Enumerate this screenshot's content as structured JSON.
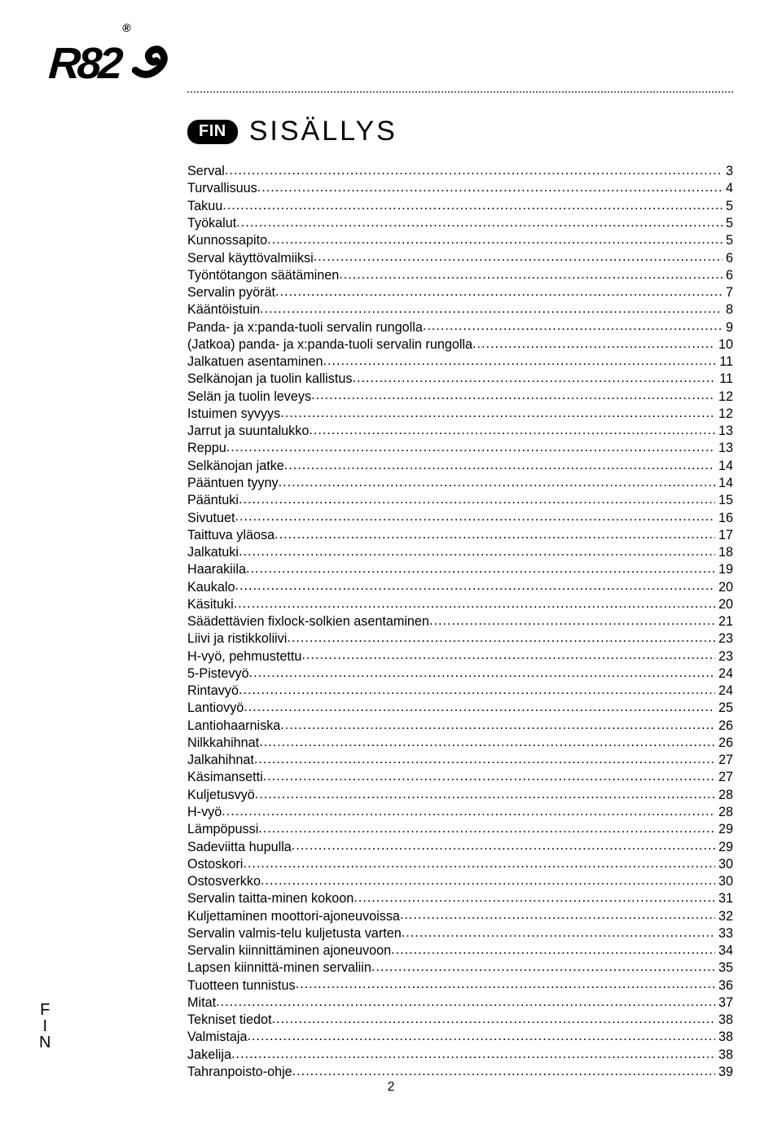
{
  "logo": {
    "text": "R82",
    "registered": "®"
  },
  "lang_badge": "FIN",
  "title": "SISÄLLYS",
  "side_tab_chars": [
    "F",
    "I",
    "N"
  ],
  "page_number": "2",
  "toc": [
    {
      "label": "Serval",
      "page": "3"
    },
    {
      "label": "Turvallisuus",
      "page": "4"
    },
    {
      "label": "Takuu",
      "page": "5"
    },
    {
      "label": "Työkalut",
      "page": "5"
    },
    {
      "label": "Kunnossapito",
      "page": "5"
    },
    {
      "label": "Serval käyttövalmiiksi",
      "page": "6"
    },
    {
      "label": "Työntötangon säätäminen",
      "page": "6"
    },
    {
      "label": "Servalin pyörät",
      "page": "7"
    },
    {
      "label": "Kääntöistuin",
      "page": "8"
    },
    {
      "label": "Panda- ja x:panda-tuoli servalin rungolla",
      "page": "9"
    },
    {
      "label": "(Jatkoa) panda- ja x:panda-tuoli servalin rungolla",
      "page": "10"
    },
    {
      "label": "Jalkatuen asentaminen",
      "page": "11"
    },
    {
      "label": "Selkänojan ja tuolin kallistus",
      "page": "11"
    },
    {
      "label": "Selän ja tuolin leveys",
      "page": "12"
    },
    {
      "label": "Istuimen syvyys",
      "page": "12"
    },
    {
      "label": "Jarrut ja suuntalukko",
      "page": "13"
    },
    {
      "label": "Reppu",
      "page": "13"
    },
    {
      "label": "Selkänojan jatke",
      "page": "14"
    },
    {
      "label": "Pääntuen tyyny",
      "page": "14"
    },
    {
      "label": "Pääntuki",
      "page": "15"
    },
    {
      "label": "Sivutuet",
      "page": "16"
    },
    {
      "label": "Taittuva yläosa",
      "page": "17"
    },
    {
      "label": "Jalkatuki",
      "page": "18"
    },
    {
      "label": "Haarakiila",
      "page": "19"
    },
    {
      "label": "Kaukalo",
      "page": "20"
    },
    {
      "label": "Käsituki",
      "page": "20"
    },
    {
      "label": "Säädettävien fixlock-solkien asentaminen",
      "page": "21"
    },
    {
      "label": "Liivi ja ristikkoliivi",
      "page": "23"
    },
    {
      "label": "H-vyö, pehmustettu",
      "page": "23"
    },
    {
      "label": "5-Pistevyö",
      "page": "24"
    },
    {
      "label": "Rintavyö",
      "page": "24"
    },
    {
      "label": "Lantiovyö",
      "page": "25"
    },
    {
      "label": "Lantiohaarniska",
      "page": "26"
    },
    {
      "label": "Nilkkahihnat",
      "page": "26"
    },
    {
      "label": "Jalkahihnat",
      "page": "27"
    },
    {
      "label": "Käsimansetti",
      "page": "27"
    },
    {
      "label": "Kuljetusvyö",
      "page": "28"
    },
    {
      "label": "H-vyö",
      "page": "28"
    },
    {
      "label": "Lämpöpussi",
      "page": "29"
    },
    {
      "label": "Sadeviitta hupulla",
      "page": "29"
    },
    {
      "label": "Ostoskori",
      "page": "30"
    },
    {
      "label": "Ostosverkko",
      "page": "30"
    },
    {
      "label": "Servalin taitta-minen kokoon",
      "page": "31"
    },
    {
      "label": "Kuljettaminen moottori-ajoneuvoissa",
      "page": "32"
    },
    {
      "label": "Servalin valmis-telu kuljetusta varten",
      "page": "33"
    },
    {
      "label": "Servalin kiinnittäminen ajoneuvoon",
      "page": "34"
    },
    {
      "label": "Lapsen kiinnittä-minen servaliin",
      "page": "35"
    },
    {
      "label": "Tuotteen tunnistus",
      "page": "36"
    },
    {
      "label": "Mitat",
      "page": "37"
    },
    {
      "label": "Tekniset tiedot",
      "page": "38"
    },
    {
      "label": "Valmistaja",
      "page": "38"
    },
    {
      "label": "Jakelija",
      "page": "38"
    },
    {
      "label": "Tahranpoisto-ohje",
      "page": "39"
    }
  ]
}
